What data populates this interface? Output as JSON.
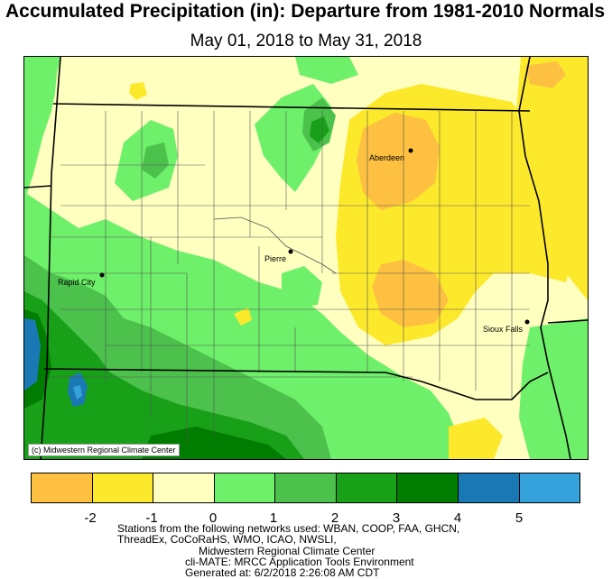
{
  "title": "Accumulated Precipitation (in): Departure from 1981-2010 Normals",
  "subtitle": "May 01, 2018 to May 31, 2018",
  "copyright": "(c) Midwestern Regional Climate Center",
  "cities": [
    {
      "name": "Aberdeen"
    },
    {
      "name": "Pierre"
    },
    {
      "name": "Rapid City"
    },
    {
      "name": "Sioux Falls"
    }
  ],
  "legend": {
    "colors": [
      "#fdc041",
      "#fde92c",
      "#ffffc0",
      "#6ef06a",
      "#4cc14c",
      "#19a019",
      "#007d00",
      "#1a78b4",
      "#36a2dc"
    ],
    "tick_labels": [
      "-2",
      "-1",
      "0",
      "1",
      "2",
      "3",
      "4",
      "5"
    ]
  },
  "footer": {
    "line1": "Stations from the following networks used: WBAN, COOP, FAA, GHCN,",
    "line2": "ThreadEx, CoCoRaHS, WMO, ICAO, NWSLI,",
    "line3": "Midwestern Regional Climate Center",
    "line4": "cli-MATE: MRCC Application Tools Environment",
    "line5": "Generated at: 6/2/2018 2:26:08 AM CDT"
  }
}
